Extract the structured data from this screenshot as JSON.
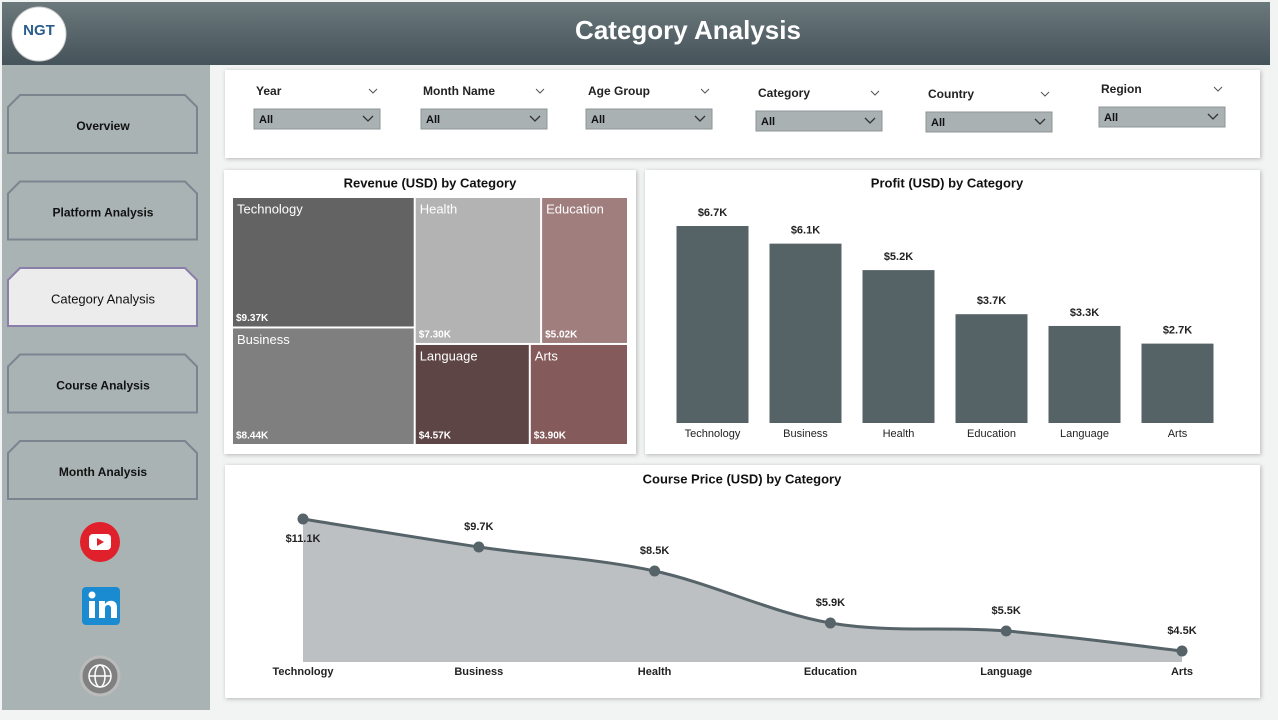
{
  "header": {
    "title": "Category Analysis",
    "logo": "NGT"
  },
  "nav": {
    "items": [
      "Overview",
      "Platform Analysis",
      "Category Analysis",
      "Course Analysis",
      "Month Analysis"
    ],
    "active": 2
  },
  "filters": [
    {
      "label": "Year",
      "value": "All"
    },
    {
      "label": "Month Name",
      "value": "All"
    },
    {
      "label": "Age Group",
      "value": "All"
    },
    {
      "label": "Category",
      "value": "All"
    },
    {
      "label": "Country",
      "value": "All"
    },
    {
      "label": "Region",
      "value": "All"
    }
  ],
  "chart_data": [
    {
      "type": "treemap",
      "title": "Revenue (USD) by Category",
      "categories": [
        "Technology",
        "Business",
        "Health",
        "Education",
        "Language",
        "Arts"
      ],
      "values": [
        9370,
        8440,
        7300,
        5020,
        4570,
        3900
      ],
      "value_labels": [
        "$9.37K",
        "$8.44K",
        "$7.30K",
        "$5.02K",
        "$4.57K",
        "$3.90K"
      ],
      "colors": [
        "#636363",
        "#7f7f7f",
        "#b3b3b3",
        "#a07e7e",
        "#5e4545",
        "#855a5a"
      ]
    },
    {
      "type": "bar",
      "title": "Profit (USD) by Category",
      "categories": [
        "Technology",
        "Business",
        "Health",
        "Education",
        "Language",
        "Arts"
      ],
      "values": [
        6700,
        6100,
        5200,
        3700,
        3300,
        2700
      ],
      "value_labels": [
        "$6.7K",
        "$6.1K",
        "$5.2K",
        "$3.7K",
        "$3.3K",
        "$2.7K"
      ],
      "color": "#556266"
    },
    {
      "type": "area",
      "title": "Course Price (USD) by Category",
      "categories": [
        "Technology",
        "Business",
        "Health",
        "Education",
        "Language",
        "Arts"
      ],
      "values": [
        11100,
        9700,
        8500,
        5900,
        5500,
        4500
      ],
      "value_labels": [
        "$11.1K",
        "$9.7K",
        "$8.5K",
        "$5.9K",
        "$5.5K",
        "$4.5K"
      ],
      "color": "#56646a",
      "fill": "#bcc0c2"
    }
  ]
}
